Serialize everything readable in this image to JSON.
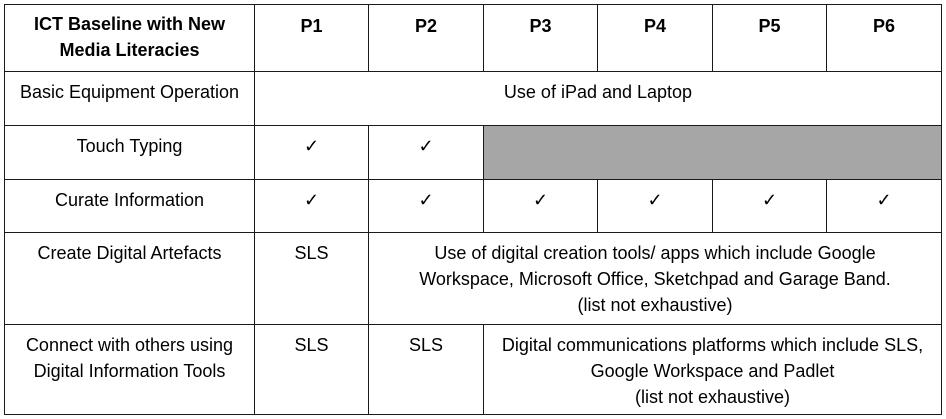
{
  "header": {
    "label": "ICT Baseline with New Media Literacies",
    "levels": [
      "P1",
      "P2",
      "P3",
      "P4",
      "P5",
      "P6"
    ]
  },
  "check": "✓",
  "rows": {
    "equipment": {
      "label": "Basic Equipment Operation",
      "span_text": "Use of iPad and Laptop"
    },
    "touch_typing": {
      "label": "Touch Typing"
    },
    "curate": {
      "label": "Curate Information"
    },
    "create": {
      "label": "Create Digital Artefacts",
      "p1": "SLS",
      "span_text_line1": "Use of digital creation tools/ apps which include Google",
      "span_text_line2": "Workspace, Microsoft Office, Sketchpad and Garage Band.",
      "span_text_line3": "(list not exhaustive)"
    },
    "connect": {
      "label_line1": "Connect with others using",
      "label_line2": "Digital Information Tools",
      "p1": "SLS",
      "p2": "SLS",
      "span_text_line1": "Digital communications platforms which include SLS,",
      "span_text_line2": "Google Workspace and Padlet",
      "span_text_line3": "(list not exhaustive)"
    }
  }
}
